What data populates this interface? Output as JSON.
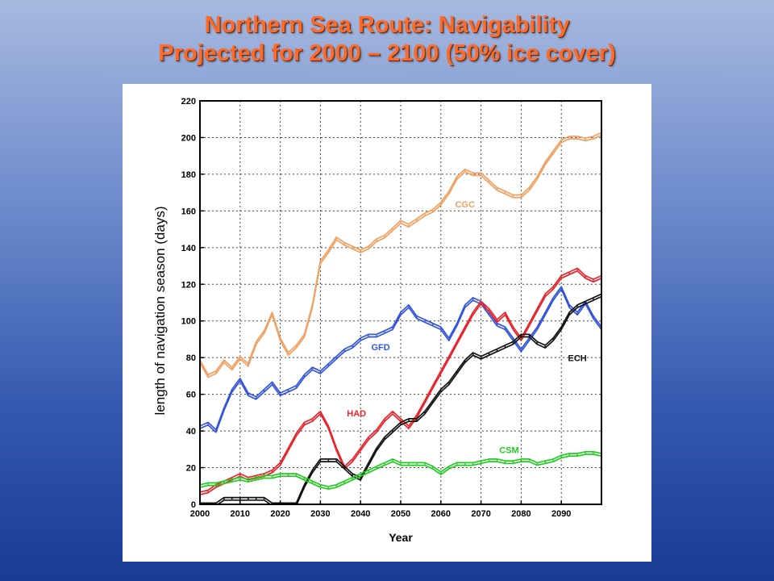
{
  "slide": {
    "title_line1": "Northern Sea Route: Navigability",
    "title_line2": "Projected for 2000 – 2100 (50% ice cover)"
  },
  "colors": {
    "CGC": "#f0a060",
    "GFD": "#3355dd",
    "HAD": "#e8242c",
    "ECH": "#111111",
    "CSM": "#22cc22",
    "grid": "#444444"
  },
  "chart_data": {
    "type": "line",
    "xlabel": "Year",
    "ylabel": "length of navigation season (days)",
    "xlim": [
      2000,
      2100
    ],
    "ylim": [
      0,
      220
    ],
    "x_ticks": [
      "2000",
      "2010",
      "2020",
      "2030",
      "2040",
      "2050",
      "2060",
      "2070",
      "2080",
      "2090"
    ],
    "y_ticks": [
      "0",
      "20",
      "40",
      "60",
      "80",
      "100",
      "120",
      "140",
      "160",
      "180",
      "200",
      "220"
    ],
    "grid": true,
    "series": [
      {
        "name": "CGC",
        "x": [
          2000,
          2002,
          2004,
          2006,
          2008,
          2010,
          2012,
          2014,
          2016,
          2018,
          2020,
          2022,
          2024,
          2026,
          2028,
          2030,
          2032,
          2034,
          2036,
          2038,
          2040,
          2042,
          2044,
          2046,
          2048,
          2050,
          2052,
          2054,
          2056,
          2058,
          2060,
          2062,
          2064,
          2066,
          2068,
          2070,
          2072,
          2074,
          2076,
          2078,
          2080,
          2082,
          2084,
          2086,
          2088,
          2090,
          2092,
          2094,
          2096,
          2098,
          2100
        ],
        "y": [
          78,
          70,
          72,
          78,
          74,
          80,
          76,
          88,
          94,
          104,
          90,
          82,
          86,
          92,
          108,
          132,
          138,
          145,
          142,
          140,
          138,
          140,
          144,
          146,
          150,
          154,
          152,
          155,
          158,
          160,
          164,
          170,
          178,
          182,
          180,
          180,
          176,
          172,
          170,
          168,
          168,
          172,
          178,
          186,
          192,
          198,
          200,
          200,
          199,
          200,
          202
        ]
      },
      {
        "name": "GFD",
        "x": [
          2000,
          2002,
          2004,
          2006,
          2008,
          2010,
          2012,
          2014,
          2016,
          2018,
          2020,
          2022,
          2024,
          2026,
          2028,
          2030,
          2032,
          2034,
          2036,
          2038,
          2040,
          2042,
          2044,
          2046,
          2048,
          2050,
          2052,
          2054,
          2056,
          2058,
          2060,
          2062,
          2064,
          2066,
          2068,
          2070,
          2072,
          2074,
          2076,
          2078,
          2080,
          2082,
          2084,
          2086,
          2088,
          2090,
          2092,
          2094,
          2096,
          2098,
          2100
        ],
        "y": [
          42,
          44,
          40,
          52,
          62,
          68,
          60,
          58,
          62,
          66,
          60,
          62,
          64,
          70,
          74,
          72,
          76,
          80,
          84,
          86,
          90,
          92,
          92,
          94,
          96,
          104,
          108,
          102,
          100,
          98,
          96,
          90,
          98,
          108,
          112,
          110,
          104,
          98,
          96,
          90,
          84,
          90,
          96,
          104,
          112,
          118,
          108,
          104,
          110,
          102,
          96
        ]
      },
      {
        "name": "HAD",
        "x": [
          2000,
          2002,
          2004,
          2006,
          2008,
          2010,
          2012,
          2014,
          2016,
          2018,
          2020,
          2022,
          2024,
          2026,
          2028,
          2030,
          2032,
          2034,
          2036,
          2038,
          2040,
          2042,
          2044,
          2046,
          2048,
          2050,
          2052,
          2054,
          2056,
          2058,
          2060,
          2062,
          2064,
          2066,
          2068,
          2070,
          2072,
          2074,
          2076,
          2078,
          2080,
          2082,
          2084,
          2086,
          2088,
          2090,
          2092,
          2094,
          2096,
          2098,
          2100
        ],
        "y": [
          6,
          7,
          10,
          12,
          14,
          16,
          14,
          15,
          16,
          18,
          22,
          30,
          38,
          44,
          46,
          50,
          42,
          30,
          20,
          24,
          30,
          36,
          40,
          46,
          50,
          46,
          42,
          48,
          56,
          64,
          72,
          80,
          88,
          96,
          104,
          110,
          106,
          100,
          104,
          96,
          90,
          98,
          106,
          114,
          118,
          124,
          126,
          128,
          124,
          122,
          124
        ]
      },
      {
        "name": "ECH",
        "x": [
          2000,
          2002,
          2004,
          2006,
          2008,
          2010,
          2012,
          2014,
          2016,
          2018,
          2020,
          2022,
          2024,
          2026,
          2028,
          2030,
          2032,
          2034,
          2036,
          2038,
          2040,
          2042,
          2044,
          2046,
          2048,
          2050,
          2052,
          2054,
          2056,
          2058,
          2060,
          2062,
          2064,
          2066,
          2068,
          2070,
          2072,
          2074,
          2076,
          2078,
          2080,
          2082,
          2084,
          2086,
          2088,
          2090,
          2092,
          2094,
          2096,
          2098,
          2100
        ],
        "y": [
          0,
          0,
          0,
          3,
          3,
          3,
          3,
          3,
          3,
          0,
          0,
          0,
          0,
          10,
          18,
          24,
          24,
          24,
          20,
          16,
          14,
          22,
          30,
          36,
          40,
          44,
          46,
          46,
          50,
          56,
          62,
          66,
          72,
          78,
          82,
          80,
          82,
          84,
          86,
          88,
          92,
          92,
          88,
          86,
          90,
          96,
          104,
          108,
          110,
          112,
          114
        ]
      },
      {
        "name": "CSM",
        "x": [
          2000,
          2002,
          2004,
          2006,
          2008,
          2010,
          2012,
          2014,
          2016,
          2018,
          2020,
          2022,
          2024,
          2026,
          2028,
          2030,
          2032,
          2034,
          2036,
          2038,
          2040,
          2042,
          2044,
          2046,
          2048,
          2050,
          2052,
          2054,
          2056,
          2058,
          2060,
          2062,
          2064,
          2066,
          2068,
          2070,
          2072,
          2074,
          2076,
          2078,
          2080,
          2082,
          2084,
          2086,
          2088,
          2090,
          2092,
          2094,
          2096,
          2098,
          2100
        ],
        "y": [
          10,
          11,
          11,
          12,
          13,
          14,
          13,
          14,
          15,
          15,
          16,
          16,
          16,
          14,
          12,
          10,
          9,
          10,
          12,
          14,
          16,
          18,
          20,
          22,
          24,
          22,
          22,
          22,
          22,
          20,
          17,
          20,
          22,
          22,
          22,
          23,
          24,
          24,
          23,
          23,
          24,
          24,
          22,
          23,
          24,
          26,
          27,
          27,
          28,
          28,
          27
        ]
      }
    ]
  }
}
